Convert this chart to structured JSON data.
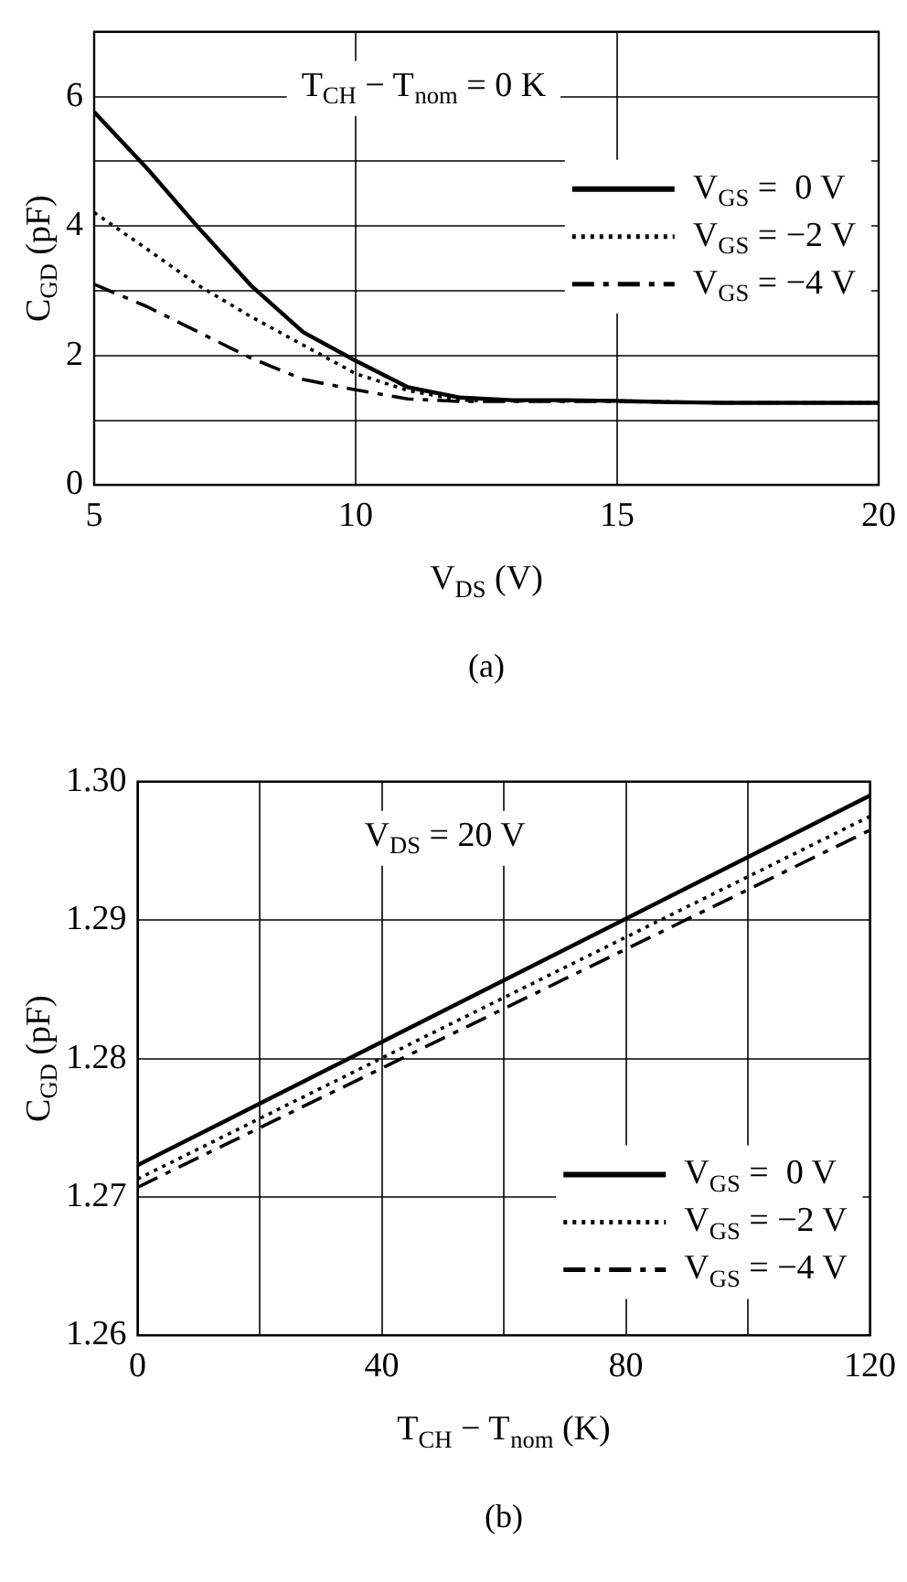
{
  "chart_data": [
    {
      "type": "line",
      "xlabel": "V$_{DS}$ (V)",
      "ylabel": "C$_{GD}$ (pF)",
      "annotations": [
        "T$_{CH}$ − T$_{nom}$ = 0 K",
        "(a)"
      ],
      "xlim": [
        5,
        20
      ],
      "xticks": [
        5,
        10,
        15,
        20
      ],
      "ylim": [
        0,
        7
      ],
      "yticks": [
        0,
        {
          "value": 1,
          "label": null
        },
        2,
        {
          "value": 3,
          "label": null
        },
        4,
        {
          "value": 5,
          "label": null
        },
        6
      ],
      "grid": true,
      "legend": "top right",
      "marker": "none",
      "series": [
        {
          "name": "V$_{GS}$ =  0 V",
          "color": "#000000",
          "line_style": "solid",
          "x": [
            5,
            6,
            7,
            8,
            9,
            10,
            11,
            12,
            13,
            14,
            15,
            16,
            17,
            18,
            20
          ],
          "values": [
            5.76,
            4.9,
            3.97,
            3.08,
            2.36,
            1.92,
            1.51,
            1.35,
            1.31,
            1.31,
            1.3,
            1.28,
            1.27,
            1.27,
            1.27
          ]
        },
        {
          "name": "V$_{GS}$ = −2 V",
          "color": "#000000",
          "line_style": "dotted",
          "x": [
            5,
            6,
            7,
            8,
            9,
            10,
            11,
            12,
            13,
            15,
            17,
            20
          ],
          "values": [
            4.21,
            3.65,
            3.08,
            2.6,
            2.16,
            1.72,
            1.46,
            1.31,
            1.3,
            1.3,
            1.27,
            1.27
          ]
        },
        {
          "name": "V$_{GS}$ = −4 V",
          "color": "#000000",
          "line_style": "dashed",
          "x": [
            5,
            6,
            7,
            8,
            9,
            10,
            11,
            12,
            13,
            15,
            17,
            20
          ],
          "values": [
            3.1,
            2.76,
            2.36,
            1.96,
            1.63,
            1.47,
            1.33,
            1.29,
            1.29,
            1.29,
            1.27,
            1.27
          ]
        }
      ]
    },
    {
      "type": "line",
      "xlabel": "T$_{CH}$ − T$_{nom}$ (K)",
      "ylabel": "C$_{GD}$ (pF)",
      "annotations": [
        "V$_{DS}$ = 20 V",
        "(b)"
      ],
      "xlim": [
        0,
        120
      ],
      "xticks": [
        0,
        {
          "value": 20,
          "label": null
        },
        40,
        {
          "value": 60,
          "label": null
        },
        80,
        {
          "value": 100,
          "label": null
        },
        120
      ],
      "ylim": [
        1.26,
        1.3
      ],
      "yticks": [
        {
          "value": 1.26,
          "label": "1.26"
        },
        {
          "value": 1.27,
          "label": "1.27"
        },
        {
          "value": 1.28,
          "label": "1.28"
        },
        {
          "value": 1.29,
          "label": "1.29"
        },
        {
          "value": 1.3,
          "label": "1.30"
        }
      ],
      "grid": true,
      "legend": "bottom right",
      "marker": "none",
      "series": [
        {
          "name": "V$_{GS}$ =  0 V",
          "color": "#000000",
          "line_style": "solid",
          "x": [
            0,
            120
          ],
          "values": [
            1.2723,
            1.299
          ]
        },
        {
          "name": "V$_{GS}$ = −2 V",
          "color": "#000000",
          "line_style": "dotted",
          "x": [
            0,
            120
          ],
          "values": [
            1.2713,
            1.2975
          ]
        },
        {
          "name": "V$_{GS}$ = −4 V",
          "color": "#000000",
          "line_style": "dashed",
          "x": [
            0,
            120
          ],
          "values": [
            1.2707,
            1.2965
          ]
        }
      ]
    }
  ]
}
